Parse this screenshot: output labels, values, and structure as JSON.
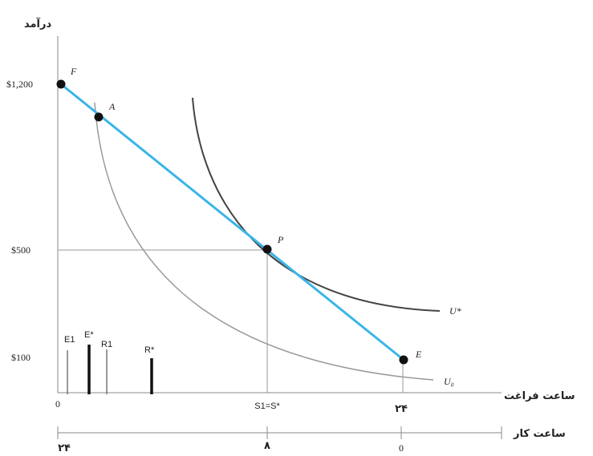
{
  "income_axis": {
    "label": "درآمد",
    "ticks": [
      "$1,200",
      "$500",
      "$100"
    ]
  },
  "leisure_axis": {
    "label": "ساعت فراغت",
    "ticks": [
      "0",
      "S1=S*",
      "۲۴"
    ]
  },
  "work_axis": {
    "label": "ساعت کار",
    "ticks": [
      "۲۴",
      "۸",
      "0"
    ]
  },
  "points": [
    "F",
    "A",
    "P",
    "E"
  ],
  "curves": [
    "U*",
    "U₀"
  ],
  "bars": [
    "E1",
    "E*",
    "R1",
    "R*"
  ]
}
